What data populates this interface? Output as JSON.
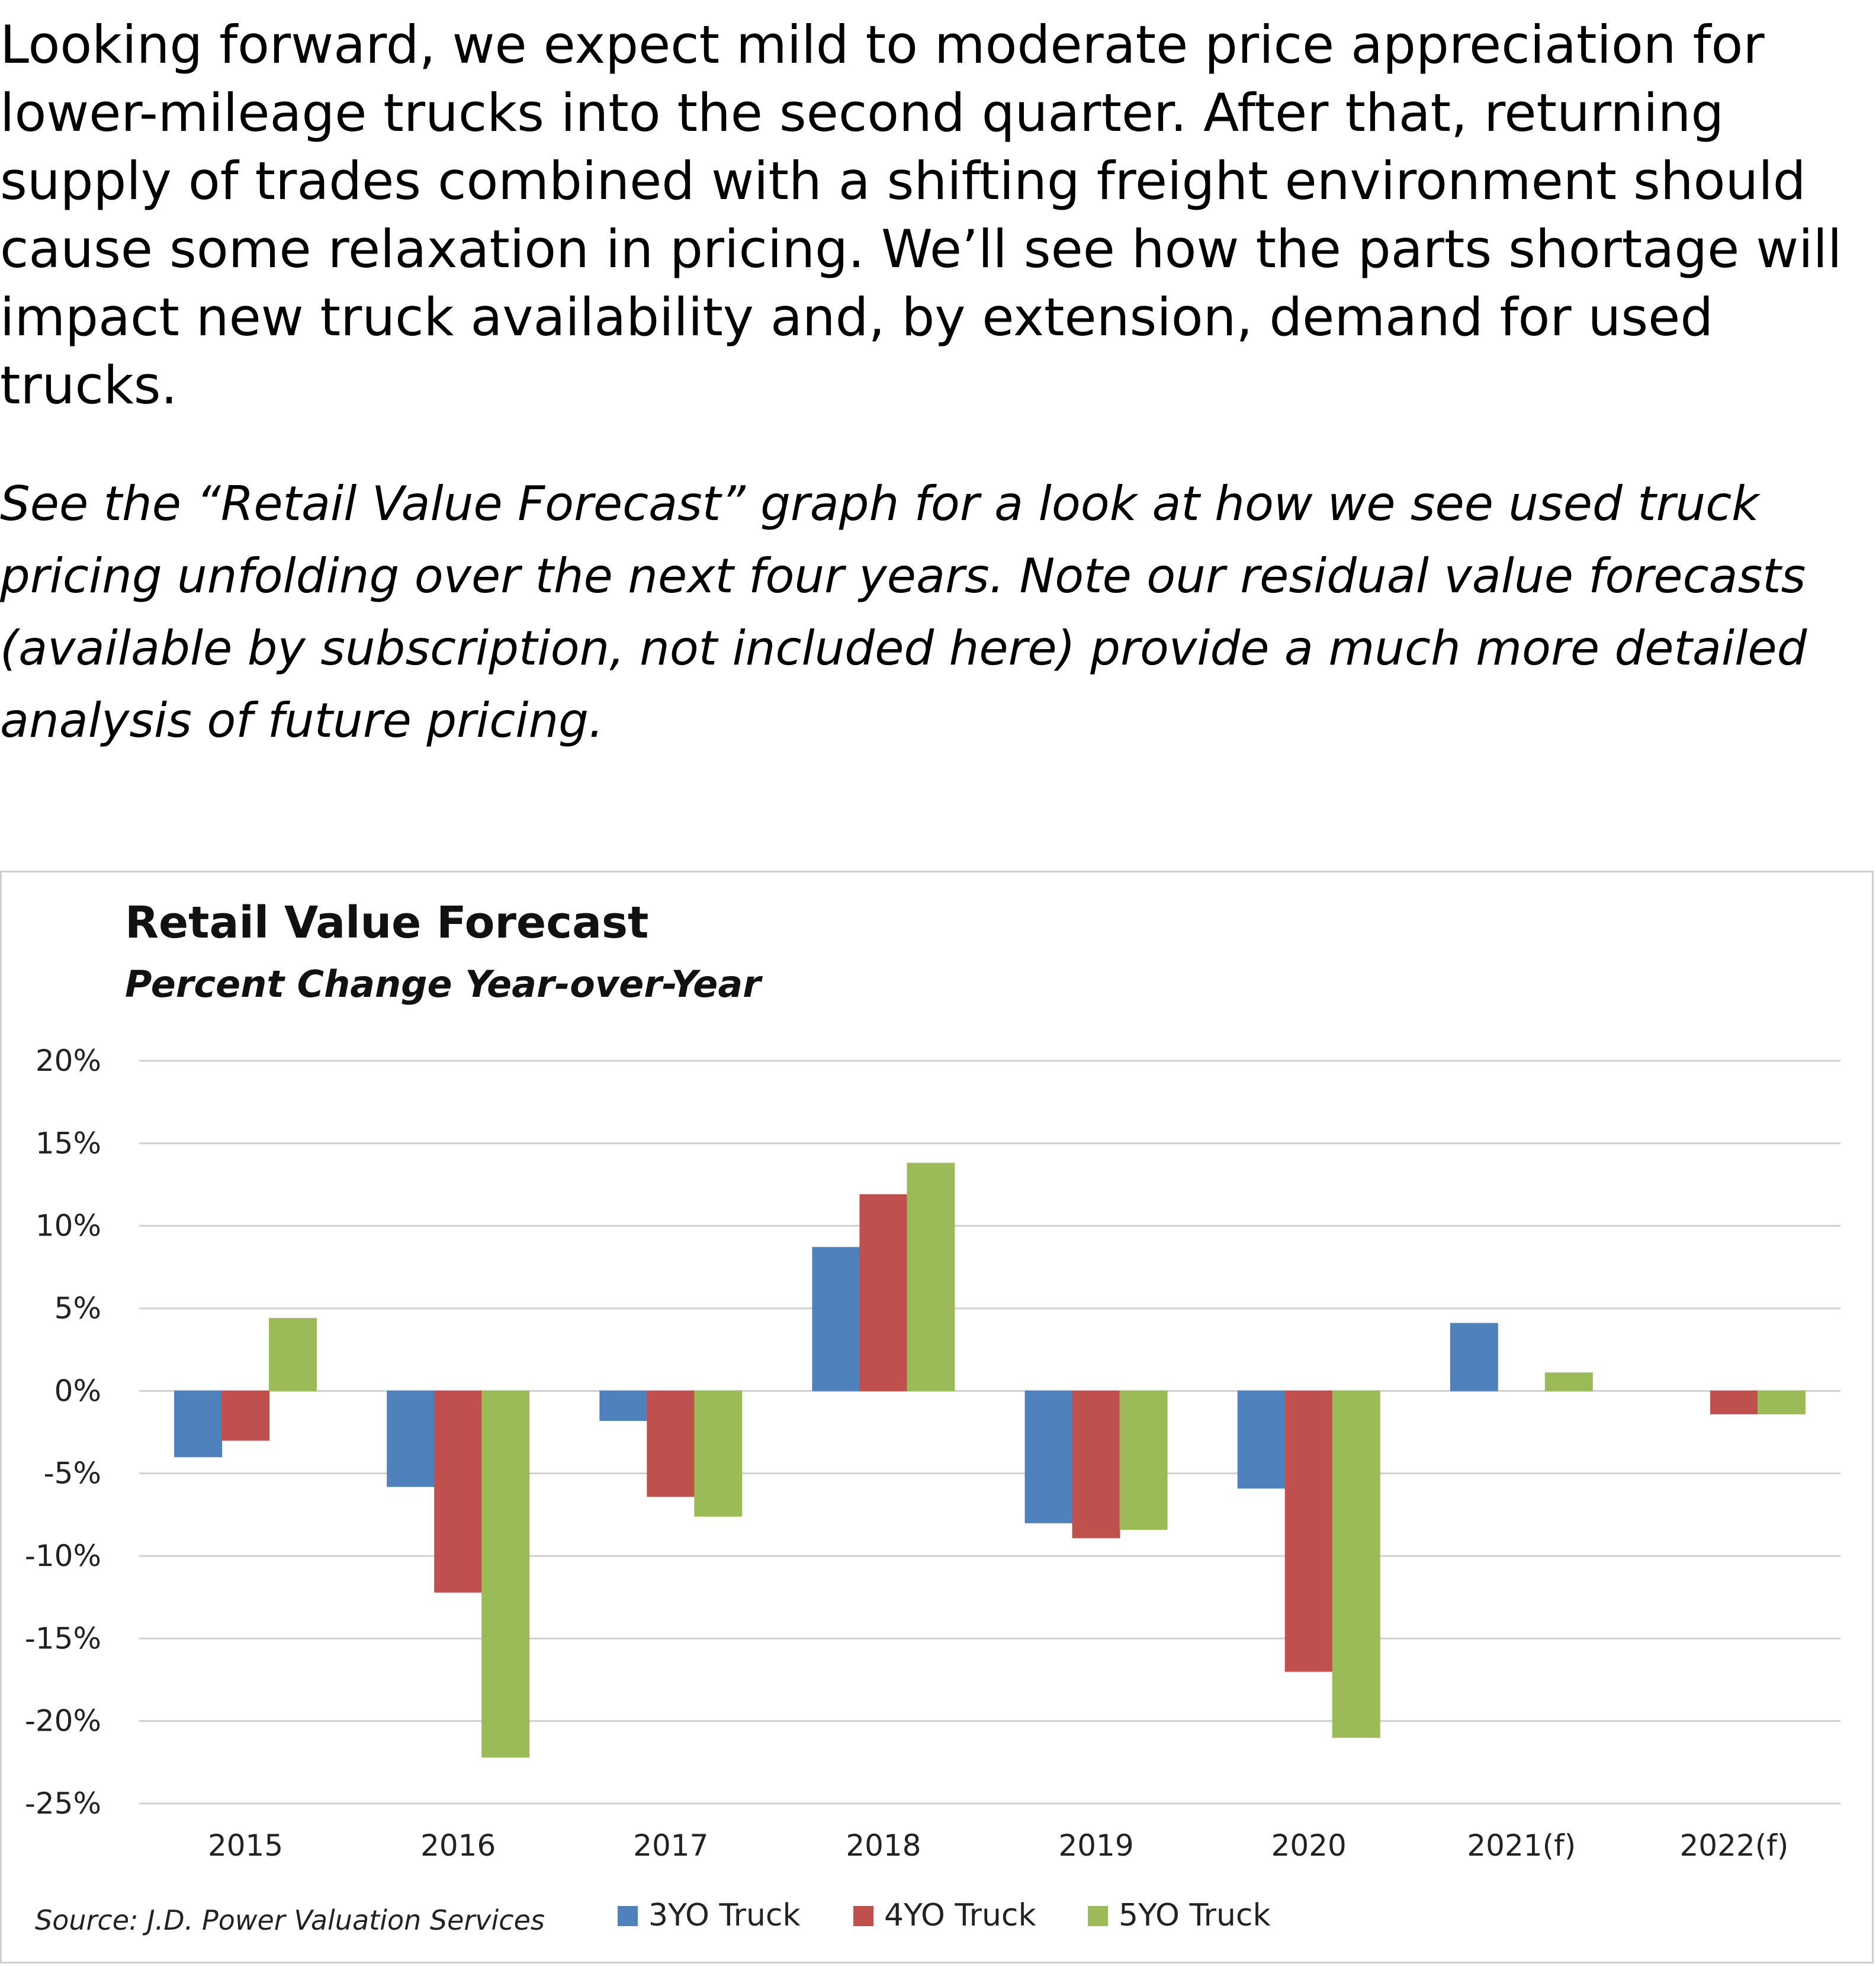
{
  "paragraph1": "Looking forward, we expect mild to moderate price appreciation for lower-mileage trucks into the second quarter. After that, returning supply of trades combined with a shifting freight environment should cause some relaxation in pricing. We’ll see how the parts shortage will impact new truck availability and, by extension, demand for used trucks.",
  "paragraph2": "See the “Retail Value Forecast” graph for a look at how we see used truck pricing unfolding over the next four years. Note our residual value forecasts (available by subscription, not included here) provide a much more detailed analysis of future pricing.",
  "chart_data": {
    "type": "bar",
    "title": "Retail Value Forecast",
    "subtitle": "Percent Change Year-over-Year",
    "source": "Source: J.D. Power Valuation Services",
    "categories": [
      "2015",
      "2016",
      "2017",
      "2018",
      "2019",
      "2020",
      "2021(f)",
      "2022(f)"
    ],
    "series": [
      {
        "name": "3YO Truck",
        "color": "#4f81bd",
        "values": [
          -4.0,
          -5.8,
          -1.8,
          8.7,
          -8.0,
          -5.9,
          4.1,
          null
        ]
      },
      {
        "name": "4YO Truck",
        "color": "#c0504d",
        "values": [
          -3.0,
          -12.2,
          -6.4,
          11.9,
          -8.9,
          -17.0,
          null,
          -1.4
        ]
      },
      {
        "name": "5YO Truck",
        "color": "#9bbb59",
        "values": [
          4.4,
          -22.2,
          -7.6,
          13.8,
          -8.4,
          -21.0,
          1.1,
          -1.4
        ]
      }
    ],
    "ylim": [
      -25,
      20
    ],
    "yticks": [
      20,
      15,
      10,
      5,
      0,
      -5,
      -10,
      -15,
      -20,
      -25
    ],
    "ytick_labels": [
      "20%",
      "15%",
      "10%",
      "5%",
      "0%",
      "-5%",
      "-10%",
      "-15%",
      "-20%",
      "-25%"
    ],
    "grid": true,
    "legend_position": "bottom"
  }
}
